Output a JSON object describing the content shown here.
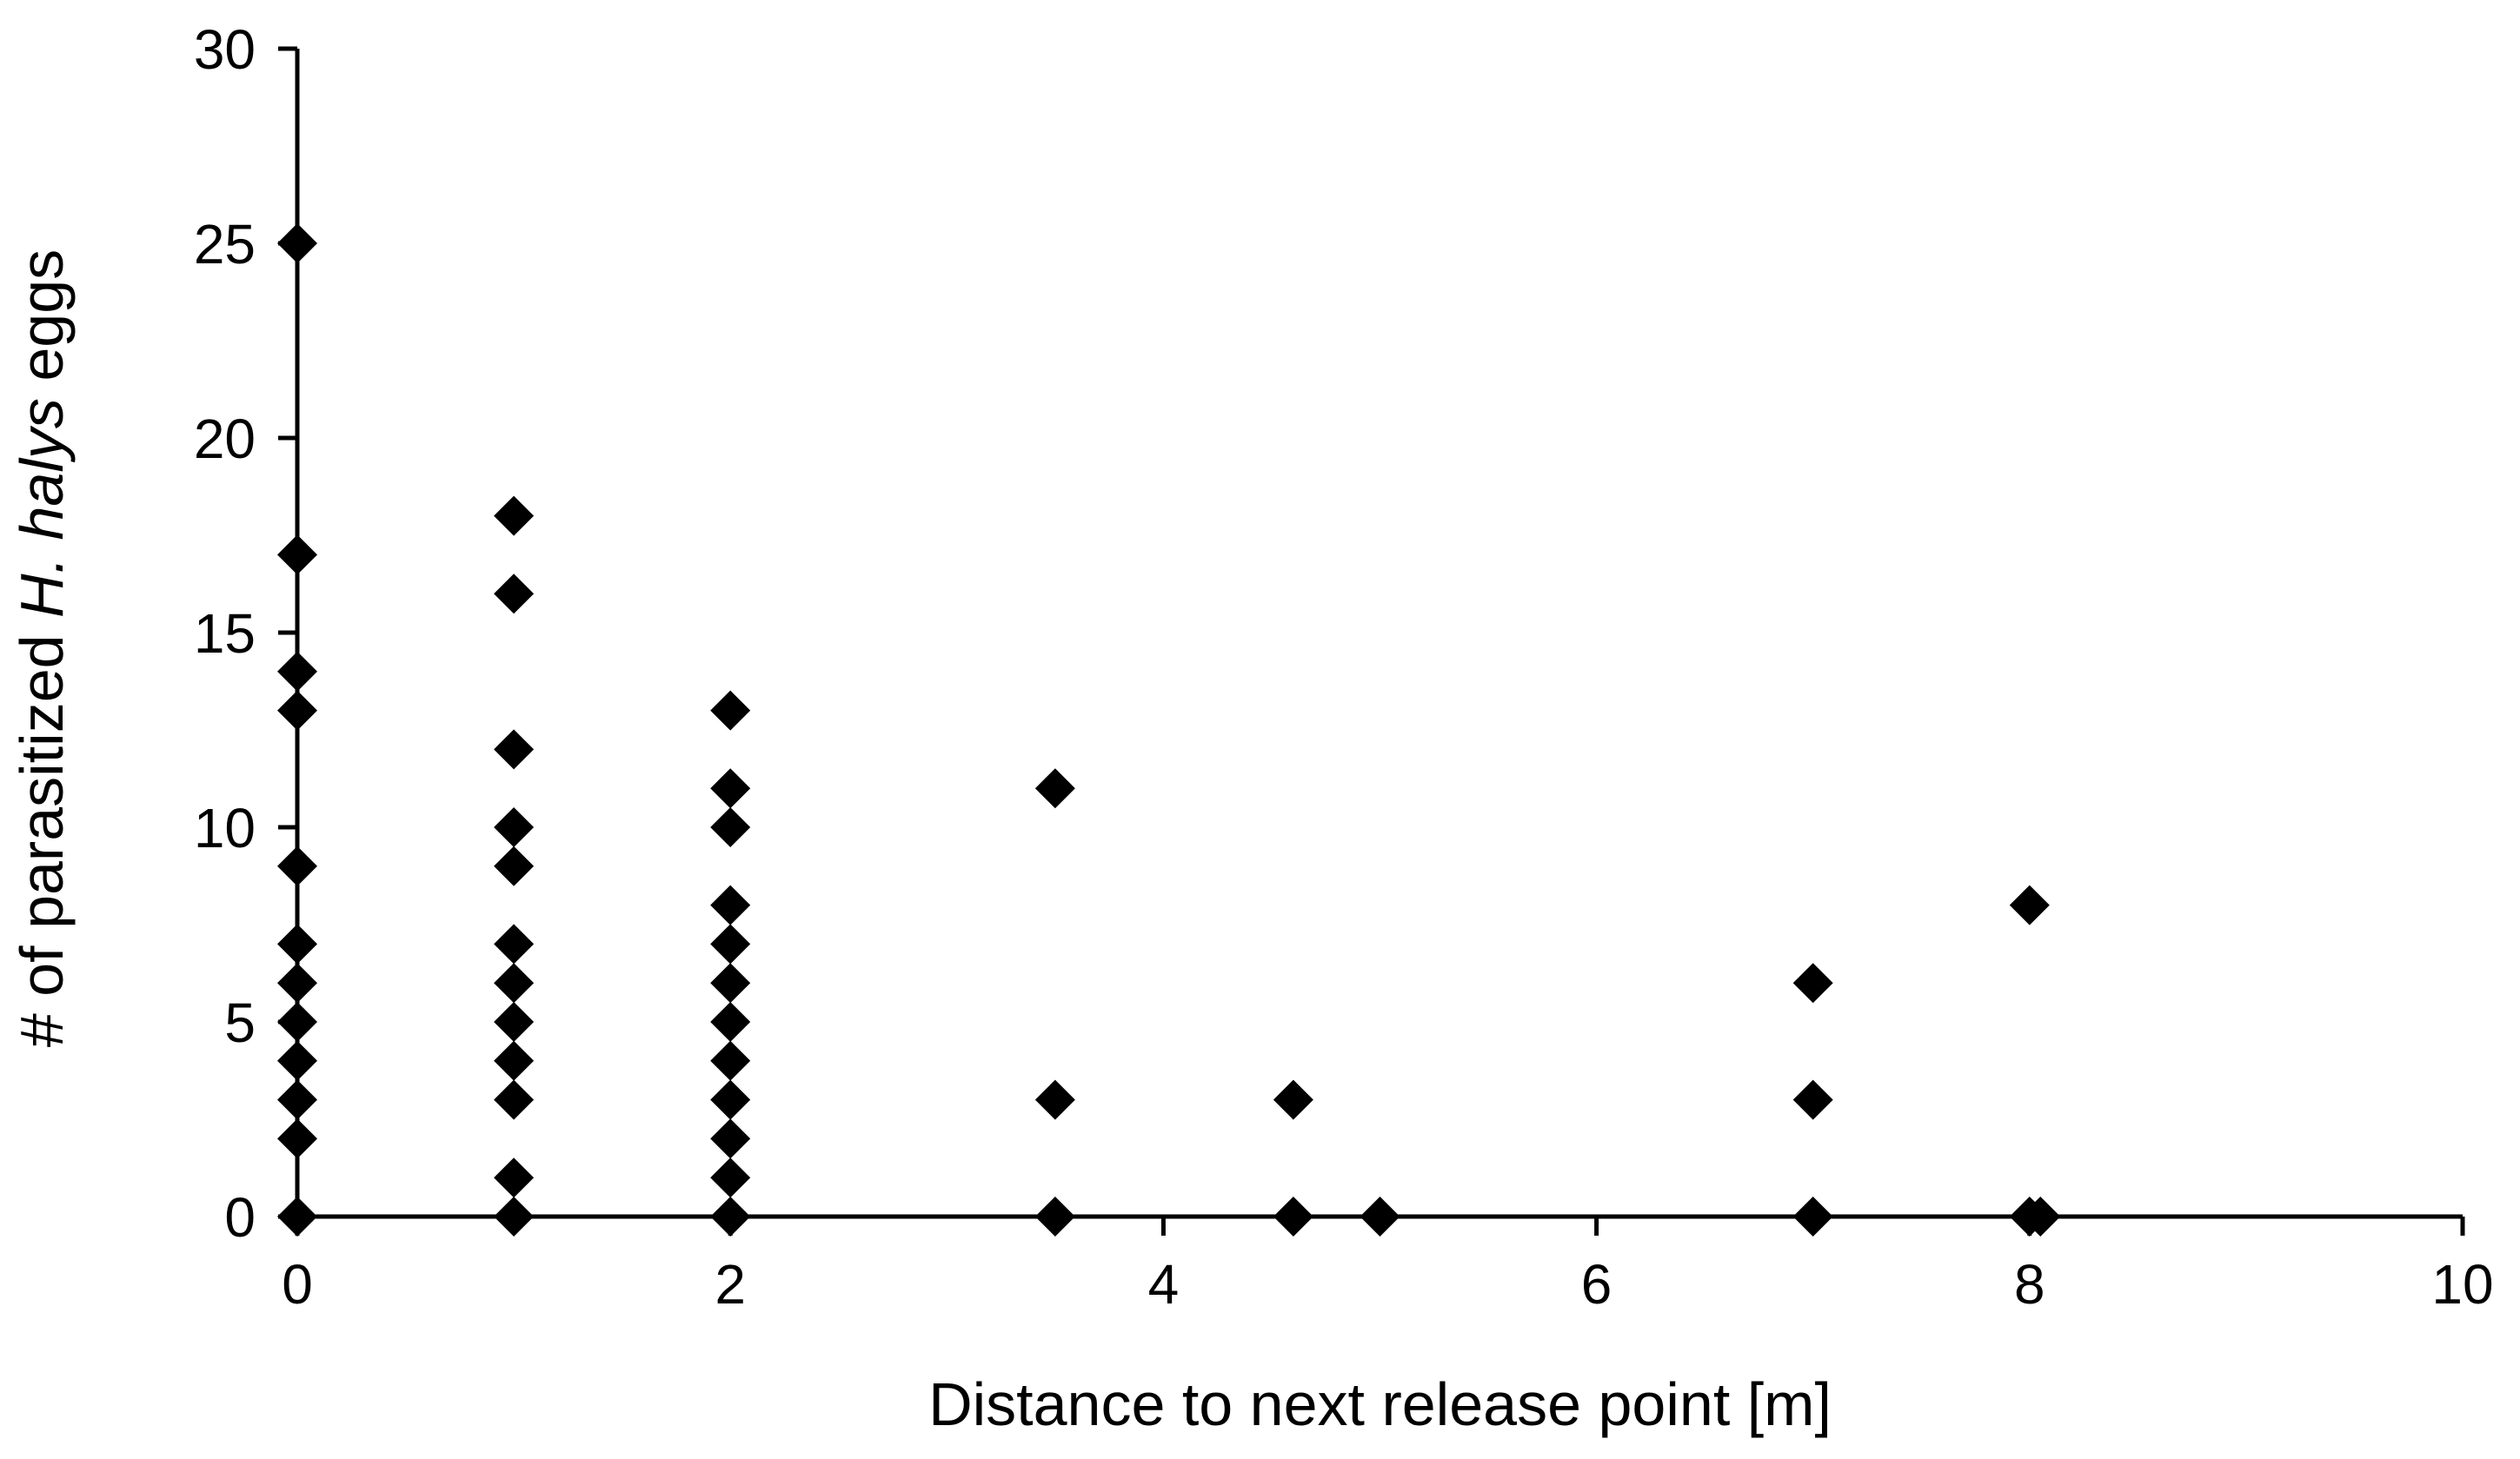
{
  "chart_data": {
    "type": "scatter",
    "xlabel": "Distance to next release point [m]",
    "ylabel_parts": [
      {
        "text": "# of parasitized ",
        "italic": false
      },
      {
        "text": "H. halys",
        "italic": true
      },
      {
        "text": " eggs",
        "italic": false
      }
    ],
    "xlim": [
      0,
      10
    ],
    "ylim": [
      0,
      30
    ],
    "x_ticks": [
      0,
      2,
      4,
      6,
      8,
      10
    ],
    "y_ticks": [
      0,
      5,
      10,
      15,
      20,
      25,
      30
    ],
    "x_tick_labels": [
      "0",
      "2",
      "4",
      "6",
      "8",
      "10"
    ],
    "y_tick_labels": [
      "0",
      "5",
      "10",
      "15",
      "20",
      "25",
      "30"
    ],
    "grid": false,
    "legend": "none",
    "marker": "diamond",
    "marker_color": "#000000",
    "points": [
      {
        "x": 0,
        "y": 25
      },
      {
        "x": 0,
        "y": 17
      },
      {
        "x": 0,
        "y": 14
      },
      {
        "x": 0,
        "y": 13
      },
      {
        "x": 0,
        "y": 9
      },
      {
        "x": 0,
        "y": 7
      },
      {
        "x": 0,
        "y": 6
      },
      {
        "x": 0,
        "y": 5
      },
      {
        "x": 0,
        "y": 4
      },
      {
        "x": 0,
        "y": 3
      },
      {
        "x": 0,
        "y": 2
      },
      {
        "x": 0,
        "y": 0
      },
      {
        "x": 1,
        "y": 18
      },
      {
        "x": 1,
        "y": 16
      },
      {
        "x": 1,
        "y": 12
      },
      {
        "x": 1,
        "y": 10
      },
      {
        "x": 1,
        "y": 9
      },
      {
        "x": 1,
        "y": 7
      },
      {
        "x": 1,
        "y": 6
      },
      {
        "x": 1,
        "y": 5
      },
      {
        "x": 1,
        "y": 4
      },
      {
        "x": 1,
        "y": 3
      },
      {
        "x": 1,
        "y": 1
      },
      {
        "x": 1,
        "y": 0
      },
      {
        "x": 2,
        "y": 13
      },
      {
        "x": 2,
        "y": 11
      },
      {
        "x": 2,
        "y": 10
      },
      {
        "x": 2,
        "y": 8
      },
      {
        "x": 2,
        "y": 7
      },
      {
        "x": 2,
        "y": 6
      },
      {
        "x": 2,
        "y": 5
      },
      {
        "x": 2,
        "y": 4
      },
      {
        "x": 2,
        "y": 3
      },
      {
        "x": 2,
        "y": 2
      },
      {
        "x": 2,
        "y": 1
      },
      {
        "x": 2,
        "y": 0
      },
      {
        "x": 3.5,
        "y": 11
      },
      {
        "x": 3.5,
        "y": 3
      },
      {
        "x": 3.5,
        "y": 0
      },
      {
        "x": 4.6,
        "y": 3
      },
      {
        "x": 4.6,
        "y": 0
      },
      {
        "x": 5,
        "y": 0
      },
      {
        "x": 7,
        "y": 6
      },
      {
        "x": 7,
        "y": 3
      },
      {
        "x": 7,
        "y": 0
      },
      {
        "x": 8,
        "y": 8
      },
      {
        "x": 8,
        "y": 0
      },
      {
        "x": 8.05,
        "y": 0
      }
    ]
  }
}
